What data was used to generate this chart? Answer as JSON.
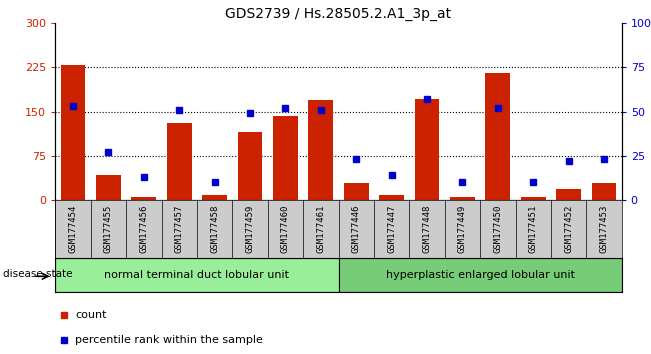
{
  "title": "GDS2739 / Hs.28505.2.A1_3p_at",
  "samples": [
    "GSM177454",
    "GSM177455",
    "GSM177456",
    "GSM177457",
    "GSM177458",
    "GSM177459",
    "GSM177460",
    "GSM177461",
    "GSM177446",
    "GSM177447",
    "GSM177448",
    "GSM177449",
    "GSM177450",
    "GSM177451",
    "GSM177452",
    "GSM177453"
  ],
  "counts": [
    228,
    42,
    5,
    130,
    8,
    115,
    143,
    170,
    28,
    8,
    172,
    5,
    215,
    5,
    18,
    28
  ],
  "percentiles": [
    53,
    27,
    13,
    51,
    10,
    49,
    52,
    51,
    23,
    14,
    57,
    10,
    52,
    10,
    22,
    23
  ],
  "group1_label": "normal terminal duct lobular unit",
  "group2_label": "hyperplastic enlarged lobular unit",
  "group1_count": 8,
  "group2_count": 8,
  "disease_state_label": "disease state",
  "ylim_left": [
    0,
    300
  ],
  "ylim_right": [
    0,
    100
  ],
  "yticks_left": [
    0,
    75,
    150,
    225,
    300
  ],
  "yticks_right": [
    0,
    25,
    50,
    75,
    100
  ],
  "bar_color": "#cc2200",
  "dot_color": "#0000cc",
  "tick_label_bg": "#cccccc",
  "group1_bg": "#99ee99",
  "group2_bg": "#77cc77",
  "legend_count_label": "count",
  "legend_pct_label": "percentile rank within the sample"
}
